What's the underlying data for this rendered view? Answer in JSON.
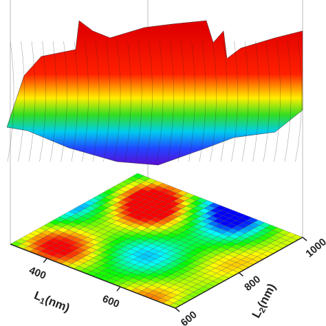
{
  "chart_data": {
    "type": "surface3d",
    "xlabel": {
      "main": "L",
      "sub": "1",
      "rest": "(nm)"
    },
    "ylabel": {
      "main": "L",
      "sub": "2",
      "rest": "(nm)"
    },
    "xlim": [
      300,
      750
    ],
    "xticks": [
      400,
      600
    ],
    "ylim": [
      600,
      1000
    ],
    "yticks": [
      600,
      800,
      1000
    ]
  }
}
